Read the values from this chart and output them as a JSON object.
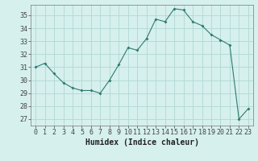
{
  "x": [
    0,
    1,
    2,
    3,
    4,
    5,
    6,
    7,
    8,
    9,
    10,
    11,
    12,
    13,
    14,
    15,
    16,
    17,
    18,
    19,
    20,
    21,
    22,
    23
  ],
  "y": [
    31.0,
    31.3,
    30.5,
    29.8,
    29.4,
    29.2,
    29.2,
    29.0,
    30.0,
    31.2,
    32.5,
    32.3,
    33.2,
    34.7,
    34.5,
    35.5,
    35.4,
    34.5,
    34.2,
    33.5,
    33.1,
    32.7,
    27.0,
    27.8
  ],
  "xlabel": "Humidex (Indice chaleur)",
  "xlim": [
    -0.5,
    23.5
  ],
  "ylim": [
    26.5,
    35.8
  ],
  "yticks": [
    27,
    28,
    29,
    30,
    31,
    32,
    33,
    34,
    35
  ],
  "xticks": [
    0,
    1,
    2,
    3,
    4,
    5,
    6,
    7,
    8,
    9,
    10,
    11,
    12,
    13,
    14,
    15,
    16,
    17,
    18,
    19,
    20,
    21,
    22,
    23
  ],
  "line_color": "#2e7b6e",
  "marker_color": "#2e7b6e",
  "bg_color": "#d6f0ee",
  "grid_color": "#b0d8d4",
  "label_fontsize": 7,
  "tick_fontsize": 6
}
